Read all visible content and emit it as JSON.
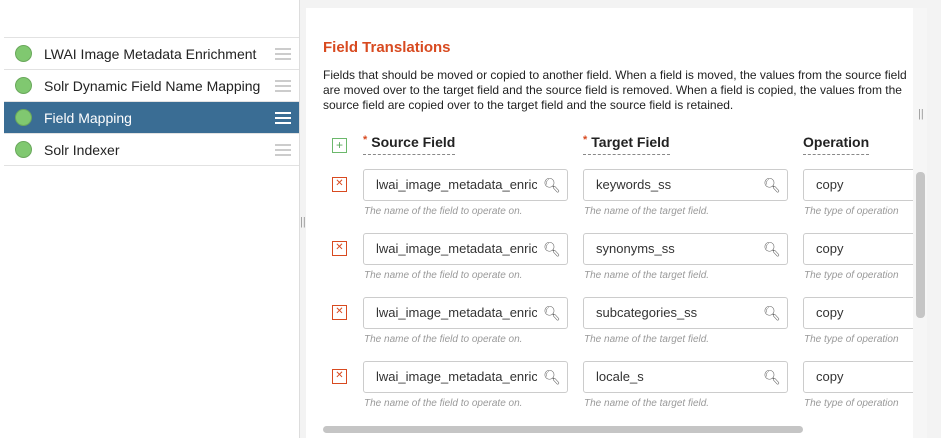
{
  "stages": [
    {
      "label": "LWAI Image Metadata Enrichment",
      "selected": false
    },
    {
      "label": "Solr Dynamic Field Name Mapping",
      "selected": false
    },
    {
      "label": "Field Mapping",
      "selected": true
    },
    {
      "label": "Solr Indexer",
      "selected": false
    }
  ],
  "section": {
    "title": "Field Translations",
    "description": "Fields that should be moved or copied to another field. When a field is moved, the values from the source field are moved over to the target field and the source field is removed. When a field is copied, the values from the source field are copied over to the target field and the source field is retained."
  },
  "columns": {
    "source": "Source Field",
    "target": "Target Field",
    "operation": "Operation",
    "required_mark": "*"
  },
  "help": {
    "source": "The name of the field to operate on.",
    "target": "The name of the target field.",
    "operation": "The type of operation"
  },
  "rows": [
    {
      "source": "lwai_image_metadata_enrichment",
      "target": "keywords_ss",
      "operation": "copy"
    },
    {
      "source": "lwai_image_metadata_enrichment",
      "target": "synonyms_ss",
      "operation": "copy"
    },
    {
      "source": "lwai_image_metadata_enrichment",
      "target": "subcategories_ss",
      "operation": "copy"
    },
    {
      "source": "lwai_image_metadata_enrichment",
      "target": "locale_s",
      "operation": "copy"
    }
  ],
  "colors": {
    "accent": "#d84a20",
    "selected": "#3a6d94",
    "status": "#80c870"
  }
}
